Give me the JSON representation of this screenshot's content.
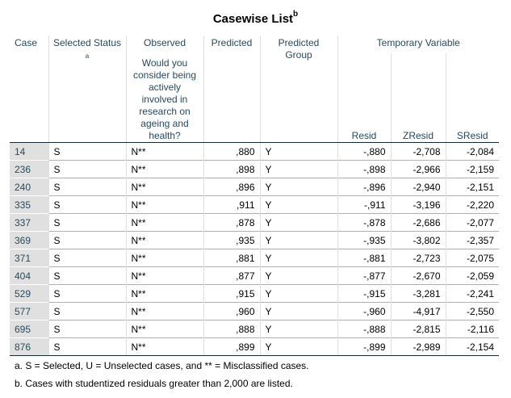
{
  "title": "Casewise List",
  "title_footnote": "b",
  "headers": {
    "case": "Case",
    "selected_status": "Selected Status",
    "selected_status_note": "a",
    "observed": "Observed",
    "observed_sub": "Would you consider being actively involved in research on ageing and health?",
    "predicted": "Predicted",
    "predicted_group": "Predicted Group",
    "temporary_variable": "Temporary Variable",
    "resid": "Resid",
    "zresid": "ZResid",
    "sresid": "SResid"
  },
  "rows": [
    {
      "case": "14",
      "status": "S",
      "observed": "N**",
      "predicted": ",880",
      "group": "Y",
      "resid": "-,880",
      "zresid": "-2,708",
      "sresid": "-2,084"
    },
    {
      "case": "236",
      "status": "S",
      "observed": "N**",
      "predicted": ",898",
      "group": "Y",
      "resid": "-,898",
      "zresid": "-2,966",
      "sresid": "-2,159"
    },
    {
      "case": "240",
      "status": "S",
      "observed": "N**",
      "predicted": ",896",
      "group": "Y",
      "resid": "-,896",
      "zresid": "-2,940",
      "sresid": "-2,151"
    },
    {
      "case": "335",
      "status": "S",
      "observed": "N**",
      "predicted": ",911",
      "group": "Y",
      "resid": "-,911",
      "zresid": "-3,196",
      "sresid": "-2,220"
    },
    {
      "case": "337",
      "status": "S",
      "observed": "N**",
      "predicted": ",878",
      "group": "Y",
      "resid": "-,878",
      "zresid": "-2,686",
      "sresid": "-2,077"
    },
    {
      "case": "369",
      "status": "S",
      "observed": "N**",
      "predicted": ",935",
      "group": "Y",
      "resid": "-,935",
      "zresid": "-3,802",
      "sresid": "-2,357"
    },
    {
      "case": "371",
      "status": "S",
      "observed": "N**",
      "predicted": ",881",
      "group": "Y",
      "resid": "-,881",
      "zresid": "-2,723",
      "sresid": "-2,075"
    },
    {
      "case": "404",
      "status": "S",
      "observed": "N**",
      "predicted": ",877",
      "group": "Y",
      "resid": "-,877",
      "zresid": "-2,670",
      "sresid": "-2,059"
    },
    {
      "case": "529",
      "status": "S",
      "observed": "N**",
      "predicted": ",915",
      "group": "Y",
      "resid": "-,915",
      "zresid": "-3,281",
      "sresid": "-2,241"
    },
    {
      "case": "577",
      "status": "S",
      "observed": "N**",
      "predicted": ",960",
      "group": "Y",
      "resid": "-,960",
      "zresid": "-4,917",
      "sresid": "-2,550"
    },
    {
      "case": "695",
      "status": "S",
      "observed": "N**",
      "predicted": ",888",
      "group": "Y",
      "resid": "-,888",
      "zresid": "-2,815",
      "sresid": "-2,116"
    },
    {
      "case": "876",
      "status": "S",
      "observed": "N**",
      "predicted": ",899",
      "group": "Y",
      "resid": "-,899",
      "zresid": "-2,989",
      "sresid": "-2,154"
    }
  ],
  "footnotes": {
    "a": "a. S = Selected, U = Unselected cases, and ** = Misclassified cases.",
    "b": "b. Cases with studentized residuals greater than 2,000 are listed."
  }
}
